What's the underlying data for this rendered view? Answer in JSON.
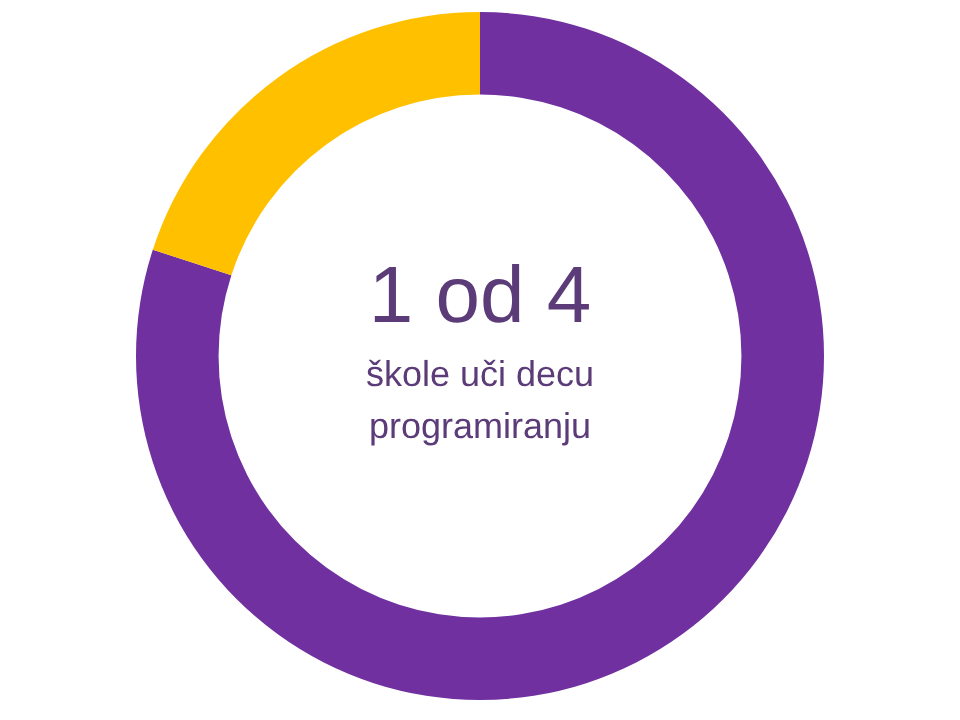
{
  "chart_data": {
    "type": "donut",
    "categories": [
      null,
      null
    ],
    "values": [
      80,
      20
    ],
    "colors": [
      "#7030a0",
      "#ffc000"
    ],
    "legend": false,
    "annotations": [
      "1 od 4",
      "škole uči decu",
      "programiranju"
    ]
  }
}
